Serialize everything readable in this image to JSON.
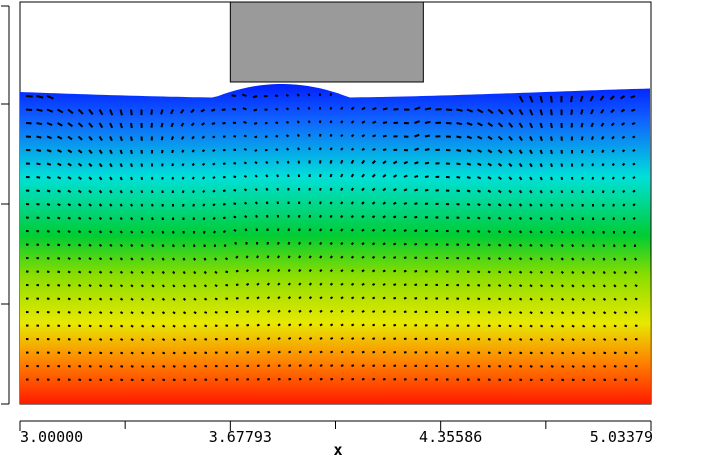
{
  "chart_data": {
    "type": "heatmap",
    "title": "",
    "xlabel": "x",
    "ylabel": "",
    "x_range": [
      3.0,
      5.03379
    ],
    "x_tick_labels": [
      "3.00000",
      "3.67793",
      "4.35586",
      "5.03379"
    ],
    "x_tick_values": [
      3.0,
      3.67793,
      4.35586,
      5.03379
    ],
    "color_scale": {
      "description": "vertical gradient from red (bottom) through orange, yellow, green, cyan to blue (top free surface)",
      "stops": [
        "#ff1a00",
        "#ff7a00",
        "#e8e800",
        "#88dd00",
        "#00cc33",
        "#00e0d8",
        "#1060ff",
        "#0018ff"
      ]
    },
    "body": {
      "color": "#9a9a9a",
      "x_range": [
        3.67793,
        4.3
      ]
    },
    "grid": false,
    "legend": "none"
  }
}
